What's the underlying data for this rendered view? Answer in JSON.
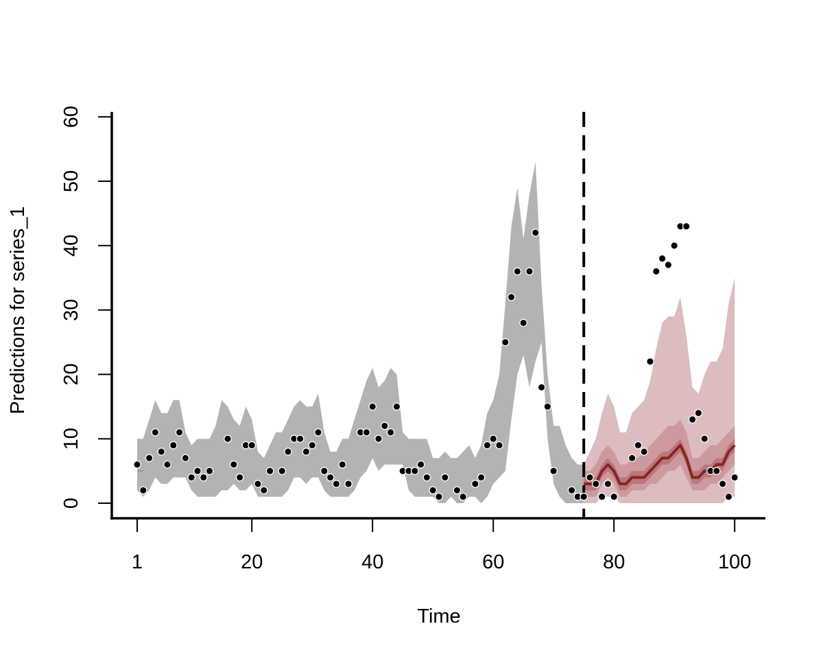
{
  "chart_data": {
    "type": "line",
    "title": "",
    "xlabel": "Time",
    "ylabel": "Predictions for series_1",
    "xlim": [
      1,
      100
    ],
    "ylim": [
      0,
      60
    ],
    "x_ticks": [
      1,
      20,
      40,
      60,
      80,
      100
    ],
    "y_ticks": [
      0,
      10,
      20,
      30,
      40,
      50,
      60
    ],
    "x_tick_labels": [
      "1",
      "20",
      "40",
      "60",
      "80",
      "100"
    ],
    "y_tick_labels": [
      "0",
      "10",
      "20",
      "30",
      "40",
      "50",
      "60"
    ],
    "grid": false,
    "forecast_start": 75,
    "colors": {
      "fit_band": "#b3b3b3",
      "forecast_band_outer": "#dcbcbf",
      "forecast_band_mid": "#cc9a9d",
      "forecast_band_inner": "#b9787c",
      "forecast_line": "#8b2323",
      "points": "#000000"
    },
    "fit_band": {
      "x": [
        1,
        2,
        3,
        4,
        5,
        6,
        7,
        8,
        9,
        10,
        11,
        12,
        13,
        14,
        15,
        16,
        17,
        18,
        19,
        20,
        21,
        22,
        23,
        24,
        25,
        26,
        27,
        28,
        29,
        30,
        31,
        32,
        33,
        34,
        35,
        36,
        37,
        38,
        39,
        40,
        41,
        42,
        43,
        44,
        45,
        46,
        47,
        48,
        49,
        50,
        51,
        52,
        53,
        54,
        55,
        56,
        57,
        58,
        59,
        60,
        61,
        62,
        63,
        64,
        65,
        66,
        67,
        68,
        69,
        70,
        71,
        72,
        73,
        74,
        75
      ],
      "lower": [
        2,
        1,
        2,
        4,
        3,
        3,
        4,
        4,
        4,
        2,
        1,
        1,
        1,
        1,
        2,
        2,
        3,
        2,
        2,
        3,
        1,
        1,
        1,
        1,
        1,
        2,
        4,
        4,
        3,
        4,
        4,
        2,
        1,
        1,
        1,
        1,
        2,
        4,
        5,
        7,
        5,
        6,
        6,
        6,
        6,
        2,
        1,
        1,
        1,
        1,
        0,
        0,
        1,
        0,
        0,
        1,
        1,
        0,
        1,
        3,
        4,
        5,
        13,
        20,
        23,
        18,
        22,
        25,
        10,
        3,
        1,
        0,
        0,
        0,
        0
      ],
      "upper": [
        10,
        10,
        13,
        16,
        14,
        14,
        16,
        16,
        11,
        9,
        10,
        10,
        10,
        12,
        16,
        15,
        13,
        12,
        15,
        13,
        8,
        7,
        9,
        11,
        11,
        13,
        15,
        16,
        15,
        15,
        17,
        11,
        8,
        8,
        10,
        10,
        13,
        16,
        19,
        21,
        18,
        19,
        21,
        20,
        11,
        10,
        10,
        10,
        10,
        7,
        7,
        8,
        7,
        7,
        8,
        9,
        7,
        9,
        14,
        16,
        20,
        31,
        43,
        49,
        41,
        48,
        53,
        34,
        20,
        12,
        12,
        9,
        7,
        6,
        6
      ]
    },
    "fit_mean": {
      "x": [
        1,
        2
      ],
      "y": [
        5,
        5
      ]
    },
    "forecast": {
      "x": [
        75,
        76,
        77,
        78,
        79,
        80,
        81,
        82,
        83,
        84,
        85,
        86,
        87,
        88,
        89,
        90,
        91,
        92,
        93,
        94,
        95,
        96,
        97,
        98,
        99,
        100
      ],
      "mean": [
        3,
        3,
        3,
        5,
        6,
        5,
        3,
        3,
        4,
        4,
        4,
        5,
        6,
        7,
        7,
        8,
        9,
        7,
        4,
        4,
        5,
        5,
        6,
        6,
        8,
        9
      ],
      "p25": [
        2,
        2,
        2,
        4,
        5,
        4,
        2,
        2,
        3,
        3,
        3,
        4,
        5,
        6,
        6,
        7,
        8,
        6,
        3,
        3,
        4,
        4,
        5,
        5,
        7,
        8
      ],
      "p75": [
        4,
        4,
        4,
        6,
        7,
        6,
        4,
        4,
        5,
        5,
        5,
        6,
        7,
        8,
        8,
        9,
        10,
        8,
        5,
        5,
        6,
        6,
        7,
        7,
        9,
        10
      ],
      "p10": [
        1,
        1,
        1,
        3,
        4,
        3,
        1,
        1,
        2,
        2,
        2,
        3,
        3,
        4,
        5,
        5,
        6,
        4,
        2,
        2,
        2,
        3,
        3,
        4,
        5,
        6
      ],
      "p90": [
        5,
        5,
        6,
        8,
        9,
        8,
        6,
        6,
        7,
        7,
        8,
        9,
        10,
        11,
        12,
        12,
        13,
        11,
        7,
        7,
        8,
        9,
        9,
        10,
        11,
        12
      ],
      "lower": [
        0,
        0,
        0,
        1,
        1,
        1,
        0,
        0,
        0,
        0,
        0,
        0,
        0,
        0,
        0,
        0,
        0,
        0,
        0,
        0,
        0,
        0,
        0,
        0,
        1,
        1
      ],
      "upper": [
        6,
        8,
        10,
        14,
        17,
        15,
        11,
        11,
        14,
        15,
        16,
        19,
        24,
        28,
        29,
        29,
        32,
        26,
        18,
        17,
        20,
        22,
        22,
        24,
        31,
        35
      ]
    },
    "points": {
      "x": [
        1,
        2,
        3,
        4,
        5,
        6,
        7,
        8,
        9,
        10,
        11,
        12,
        13,
        16,
        17,
        18,
        19,
        20,
        21,
        22,
        23,
        25,
        26,
        27,
        28,
        29,
        30,
        31,
        32,
        33,
        34,
        35,
        36,
        38,
        39,
        40,
        41,
        42,
        43,
        44,
        45,
        46,
        47,
        48,
        49,
        50,
        51,
        52,
        54,
        55,
        57,
        58,
        59,
        60,
        61,
        62,
        63,
        64,
        65,
        66,
        67,
        68,
        69,
        70,
        73,
        74,
        75,
        76,
        77,
        78,
        79,
        80,
        83,
        84,
        85,
        86,
        87,
        88,
        89,
        90,
        91,
        92,
        93,
        94,
        95,
        96,
        97,
        98,
        99,
        100
      ],
      "y": [
        6,
        2,
        7,
        11,
        8,
        6,
        9,
        11,
        7,
        4,
        5,
        4,
        5,
        10,
        6,
        4,
        9,
        9,
        3,
        2,
        5,
        5,
        8,
        10,
        10,
        8,
        9,
        11,
        5,
        4,
        3,
        6,
        3,
        11,
        11,
        15,
        10,
        12,
        11,
        15,
        5,
        5,
        5,
        6,
        4,
        2,
        1,
        4,
        2,
        1,
        3,
        4,
        9,
        10,
        9,
        25,
        32,
        36,
        28,
        36,
        42,
        18,
        15,
        5,
        2,
        1,
        1,
        4,
        3,
        1,
        3,
        1,
        7,
        9,
        8,
        22,
        36,
        38,
        37,
        40,
        43,
        43,
        13,
        14,
        10,
        5,
        5,
        3,
        1,
        4
      ]
    }
  }
}
